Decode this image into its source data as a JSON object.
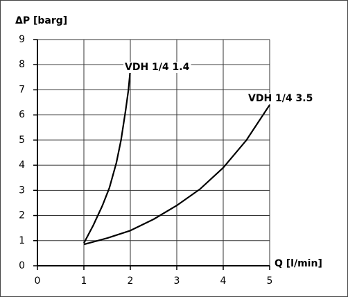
{
  "chart_data": {
    "type": "line",
    "y_label": "ΔP [barg]",
    "x_label": "Q [l/min]",
    "xlim": [
      0,
      5
    ],
    "xticks": [
      0,
      1,
      2,
      3,
      4,
      5
    ],
    "ylim": [
      0,
      9
    ],
    "yticks": [
      0,
      1,
      2,
      3,
      4,
      5,
      6,
      7,
      8,
      9
    ],
    "grid": true,
    "series": [
      {
        "name": "VDH 1/4 1.4",
        "color": "#000000",
        "x": [
          1.0,
          1.2,
          1.4,
          1.55,
          1.7,
          1.8,
          1.9,
          1.96,
          2.0
        ],
        "values": [
          0.9,
          1.6,
          2.4,
          3.1,
          4.1,
          5.0,
          6.2,
          7.0,
          7.8
        ]
      },
      {
        "name": "VDH 1/4 3.5",
        "color": "#000000",
        "x": [
          1.0,
          1.5,
          2.0,
          2.5,
          3.0,
          3.5,
          4.0,
          4.5,
          5.0
        ],
        "values": [
          0.85,
          1.1,
          1.4,
          1.85,
          2.4,
          3.05,
          3.9,
          5.0,
          6.4
        ]
      }
    ]
  }
}
